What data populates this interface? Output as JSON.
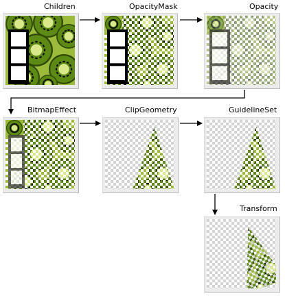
{
  "stages": [
    {
      "label": "Children",
      "effect": "children"
    },
    {
      "label": "OpacityMask",
      "effect": "opacity-mask"
    },
    {
      "label": "Opacity",
      "effect": "opacity"
    },
    {
      "label": "BitmapEffect",
      "effect": "bitmap-effect"
    },
    {
      "label": "ClipGeometry",
      "effect": "clip-geometry"
    },
    {
      "label": "GuidelineSet",
      "effect": "guideline-set"
    },
    {
      "label": "Transform",
      "effect": "transform"
    }
  ],
  "colors": {
    "kiwi_green": "#5d8a12",
    "kiwi_light": "#d9e98a",
    "kiwi_dark": "#2f4a06",
    "checker": "#d2d2d2",
    "film": "#000000"
  }
}
